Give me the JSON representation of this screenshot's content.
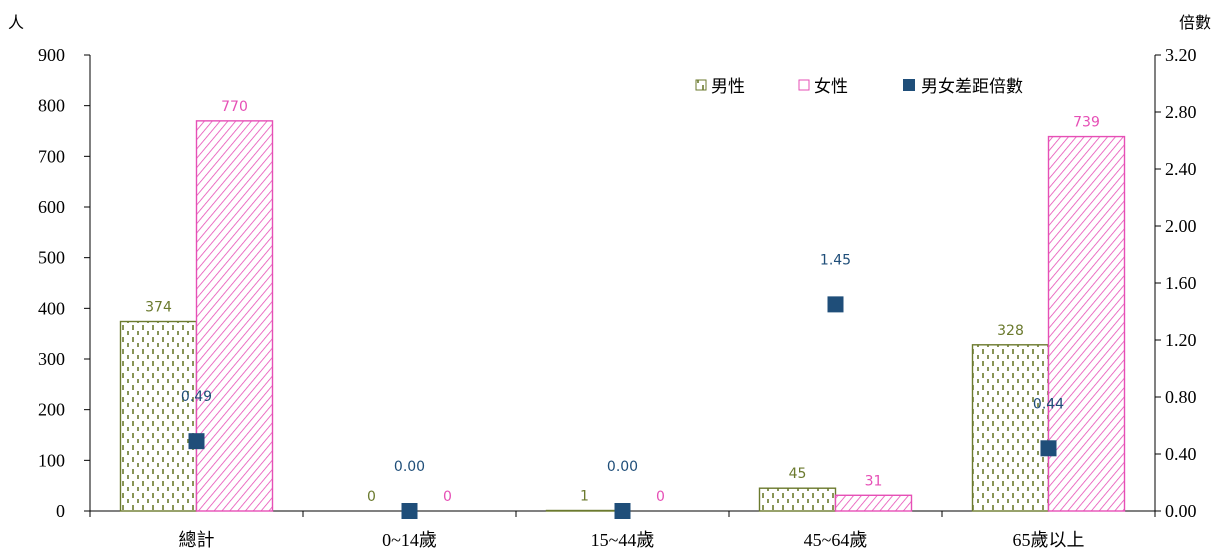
{
  "chart_data": {
    "type": "bar",
    "categories": [
      "總計",
      "0~14歲",
      "15~44歲",
      "45~64歲",
      "65歲以上"
    ],
    "series": [
      {
        "name": "男性",
        "kind": "bar",
        "axis": "left",
        "color": "#6b7a2e",
        "values": [
          374,
          0,
          1,
          45,
          328
        ],
        "labels": [
          "374",
          "0",
          "1",
          "45",
          "328"
        ]
      },
      {
        "name": "女性",
        "kind": "bar",
        "axis": "left",
        "color": "#e64fb6",
        "values": [
          770,
          0,
          0,
          31,
          739
        ],
        "labels": [
          "770",
          "0",
          "0",
          "31",
          "739"
        ]
      },
      {
        "name": "男女差距倍數",
        "kind": "marker",
        "axis": "right",
        "color": "#1f4e79",
        "values": [
          0.49,
          0.0,
          0.0,
          1.45,
          0.44
        ],
        "labels": [
          "0.49",
          "0.00",
          "0.00",
          "1.45",
          "0.44"
        ]
      }
    ],
    "y_left": {
      "unit": "人",
      "range": [
        0,
        900
      ],
      "ticks": [
        "0",
        "100",
        "200",
        "300",
        "400",
        "500",
        "600",
        "700",
        "800",
        "900"
      ]
    },
    "y_right": {
      "unit": "倍數",
      "range": [
        0,
        3.2
      ],
      "ticks": [
        "0.00",
        "0.40",
        "0.80",
        "1.20",
        "1.60",
        "2.00",
        "2.40",
        "2.80",
        "3.20"
      ]
    },
    "legend": {
      "position": "top-right"
    },
    "grid": false
  }
}
